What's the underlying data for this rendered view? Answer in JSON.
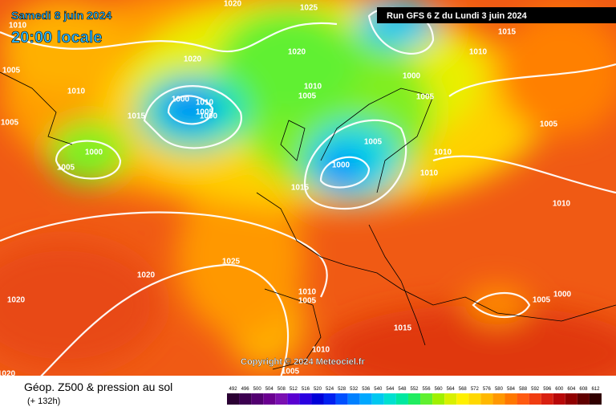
{
  "header": {
    "date": "Samedi 8 juin 2024",
    "time": "20:00 locale",
    "run": "Run GFS 6 Z du Lundi 3 juin 2024"
  },
  "copyright": "Copyright © 2024 Meteociel.fr",
  "footer": {
    "title": "Géop. Z500 & pression au sol",
    "lead": "(+ 132h)"
  },
  "isobar_labels": [
    "1025",
    "1020",
    "1015",
    "1010",
    "1005",
    "1010",
    "1005",
    "1015",
    "1020",
    "1020",
    "1000",
    "1010",
    "1005",
    "1000",
    "1010",
    "1005",
    "1000",
    "1005",
    "1005",
    "1000",
    "1005",
    "1005",
    "1010",
    "1000",
    "1010",
    "1015",
    "1010",
    "1025",
    "1020",
    "1020",
    "1010",
    "1005",
    "1005",
    "1000",
    "1015",
    "1010",
    "1005",
    "1020",
    "1010"
  ],
  "scale": [
    {
      "label": 492,
      "color": "#2a0033"
    },
    {
      "label": 496,
      "color": "#3c0050"
    },
    {
      "label": 500,
      "color": "#520070"
    },
    {
      "label": 504,
      "color": "#6a0090"
    },
    {
      "label": 508,
      "color": "#7a10b0"
    },
    {
      "label": 512,
      "color": "#5a00d0"
    },
    {
      "label": 516,
      "color": "#2a00e0"
    },
    {
      "label": 520,
      "color": "#0000d8"
    },
    {
      "label": 524,
      "color": "#0020f0"
    },
    {
      "label": 528,
      "color": "#0050ff"
    },
    {
      "label": 532,
      "color": "#0080ff"
    },
    {
      "label": 536,
      "color": "#00a8ff"
    },
    {
      "label": 540,
      "color": "#00c8f0"
    },
    {
      "label": 544,
      "color": "#00e0d0"
    },
    {
      "label": 548,
      "color": "#00e8a0"
    },
    {
      "label": 552,
      "color": "#20ec60"
    },
    {
      "label": 556,
      "color": "#60f030"
    },
    {
      "label": 560,
      "color": "#a0f000"
    },
    {
      "label": 564,
      "color": "#d8f000"
    },
    {
      "label": 568,
      "color": "#fff000"
    },
    {
      "label": 572,
      "color": "#ffd800"
    },
    {
      "label": 576,
      "color": "#ffb800"
    },
    {
      "label": 580,
      "color": "#ff9800"
    },
    {
      "label": 584,
      "color": "#ff7800"
    },
    {
      "label": 588,
      "color": "#ff5a10"
    },
    {
      "label": 592,
      "color": "#f03c10"
    },
    {
      "label": 596,
      "color": "#d82010"
    },
    {
      "label": 600,
      "color": "#b80808"
    },
    {
      "label": 604,
      "color": "#900000"
    },
    {
      "label": 608,
      "color": "#600000"
    },
    {
      "label": 612,
      "color": "#300000"
    }
  ]
}
